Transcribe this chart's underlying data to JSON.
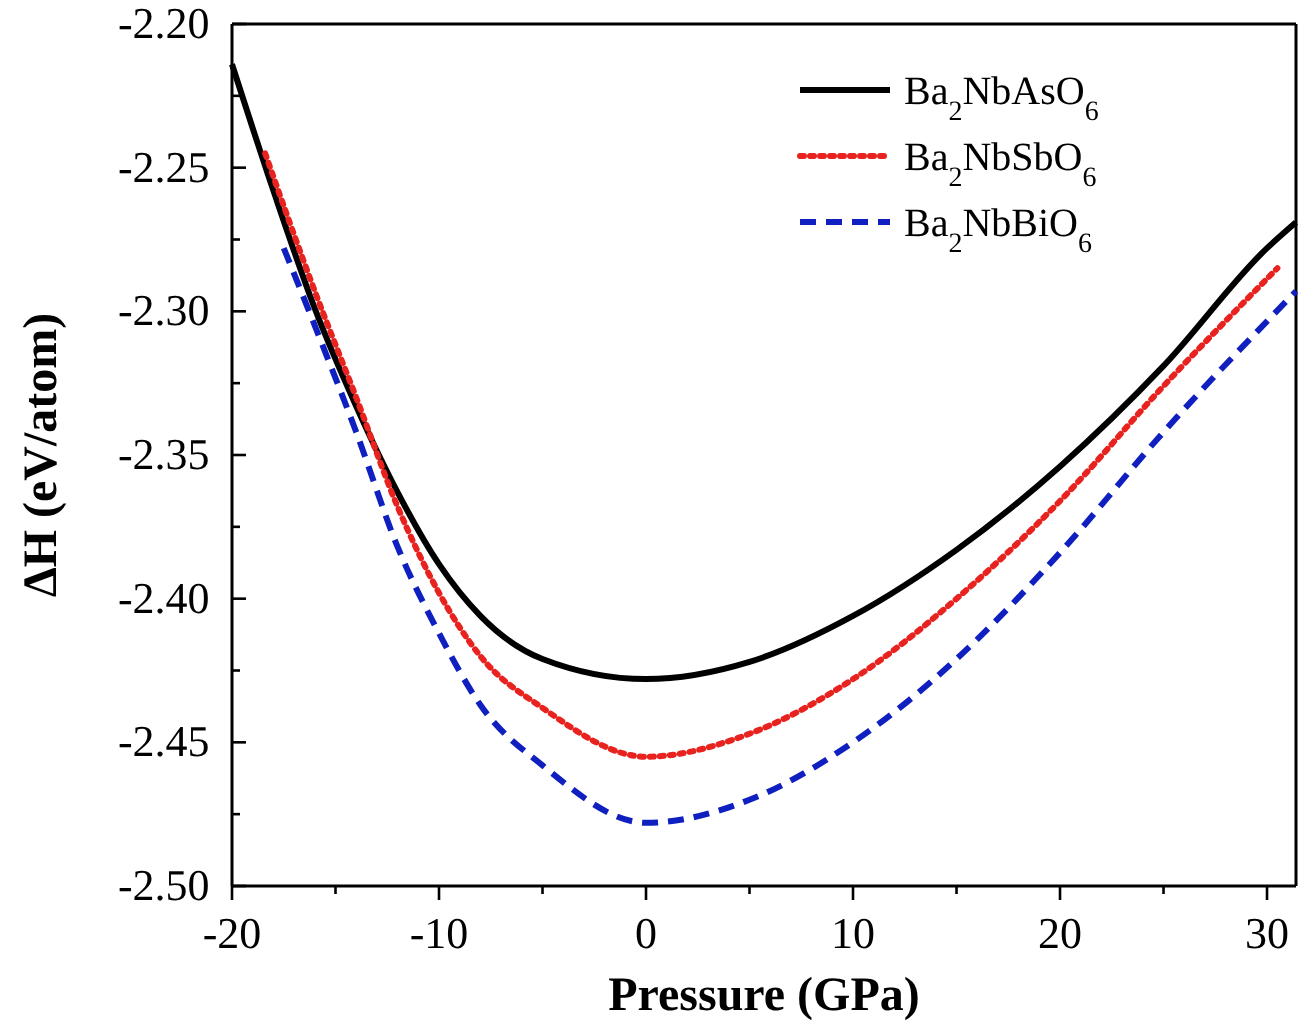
{
  "chart_data": {
    "type": "line",
    "xlabel": "Pressure (GPa)",
    "ylabel": "ΔH (eV/atom)",
    "xlim": [
      -20,
      31.4
    ],
    "ylim": [
      -2.5,
      -2.2
    ],
    "xticks": [
      -20,
      {
        "value": -15,
        "label": null
      },
      -10,
      {
        "value": -5,
        "label": null
      },
      0,
      {
        "value": 5,
        "label": null
      },
      10,
      {
        "value": 15,
        "label": null
      },
      20,
      {
        "value": 25,
        "label": null
      },
      30
    ],
    "yticks": [
      {
        "value": -2.5,
        "label": "-2.50"
      },
      {
        "value": -2.475,
        "label": null
      },
      {
        "value": -2.45,
        "label": "-2.45"
      },
      {
        "value": -2.425,
        "label": null
      },
      {
        "value": -2.4,
        "label": "-2.40"
      },
      {
        "value": -2.375,
        "label": null
      },
      {
        "value": -2.35,
        "label": "-2.35"
      },
      {
        "value": -2.325,
        "label": null
      },
      {
        "value": -2.3,
        "label": "-2.30"
      },
      {
        "value": -2.275,
        "label": null
      },
      {
        "value": -2.25,
        "label": "-2.25"
      },
      {
        "value": -2.225,
        "label": null
      },
      {
        "value": -2.2,
        "label": "-2.20"
      }
    ],
    "grid": false,
    "legend": "top right",
    "marker": "none",
    "series": [
      {
        "name": "Ba$_{2}$NbAsO$_{6}$",
        "color": "#000000",
        "line_style": "solid",
        "x": [
          -20,
          -18,
          -16,
          -14,
          -12,
          -10,
          -8,
          -5,
          0,
          5,
          10,
          15,
          20,
          25,
          30,
          31.4
        ],
        "values": [
          -2.214,
          -2.258,
          -2.299,
          -2.333,
          -2.363,
          -2.388,
          -2.406,
          -2.421,
          -2.428,
          -2.422,
          -2.406,
          -2.383,
          -2.354,
          -2.319,
          -2.278,
          -2.269
        ]
      },
      {
        "name": "Ba$_{2}$NbSbO$_{6}$",
        "color": "#e8231f",
        "line_style": "dotted",
        "x": [
          -18.4,
          -16,
          -14,
          -12,
          -10,
          -8,
          -5,
          0,
          5,
          10,
          15,
          20,
          25,
          30.5
        ],
        "values": [
          -2.245,
          -2.293,
          -2.33,
          -2.368,
          -2.398,
          -2.42,
          -2.438,
          -2.455,
          -2.447,
          -2.428,
          -2.4,
          -2.366,
          -2.326,
          -2.285
        ]
      },
      {
        "name": "Ba$_{2}$NbBiO$_{6}$",
        "color": "#1020c0",
        "line_style": "dashed",
        "x": [
          -17.5,
          -16,
          -14,
          -12,
          -10,
          -8,
          -5,
          0,
          5,
          10,
          15,
          20,
          25,
          31.4
        ],
        "values": [
          -2.278,
          -2.305,
          -2.342,
          -2.382,
          -2.412,
          -2.437,
          -2.458,
          -2.478,
          -2.47,
          -2.45,
          -2.421,
          -2.384,
          -2.342,
          -2.293
        ]
      }
    ]
  }
}
